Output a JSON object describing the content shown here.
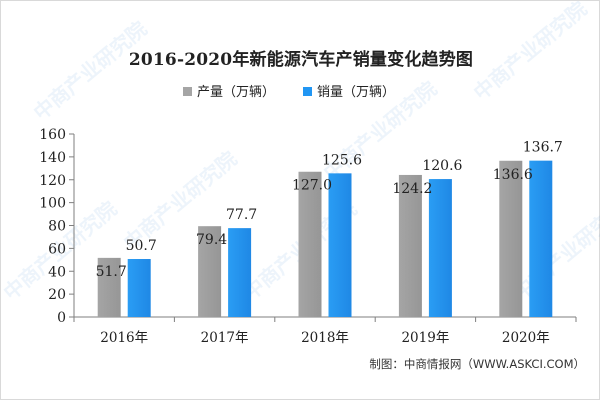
{
  "title": "2016-2020年新能源汽车产销量变化趋势图",
  "source": "制图：中商情报网（WWW.ASKCI.COM）",
  "watermark": "中商产业研究院",
  "chart_data": {
    "type": "bar",
    "title": "2016-2020年新能源汽车产销量变化趋势图",
    "categories": [
      "2016年",
      "2017年",
      "2018年",
      "2019年",
      "2020年"
    ],
    "series": [
      {
        "name": "产量（万辆）",
        "color": "#a5a5a5",
        "values": [
          51.7,
          79.4,
          127.0,
          124.2,
          136.6
        ],
        "labels": [
          "51.7",
          "79.4",
          "127.0",
          "124.2",
          "136.6"
        ]
      },
      {
        "name": "销量（万辆）",
        "color": "#2196f3",
        "values": [
          50.7,
          77.7,
          125.6,
          120.6,
          136.7
        ],
        "labels": [
          "50.7",
          "77.7",
          "125.6",
          "120.6",
          "136.7"
        ]
      }
    ],
    "ylim": [
      0,
      160
    ],
    "yticks": [
      0,
      20,
      40,
      60,
      80,
      100,
      120,
      140,
      160
    ],
    "xlabel": "",
    "ylabel": "",
    "grid": false,
    "legend": "top-left"
  }
}
